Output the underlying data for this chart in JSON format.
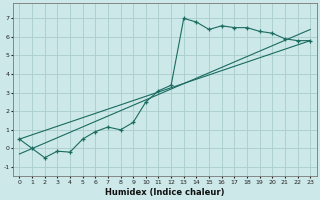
{
  "xlabel": "Humidex (Indice chaleur)",
  "background_color": "#cce8e8",
  "grid_color": "#aacccc",
  "line_color": "#1a6b60",
  "xlim": [
    -0.5,
    23.5
  ],
  "ylim": [
    -1.5,
    7.8
  ],
  "yticks": [
    -1,
    0,
    1,
    2,
    3,
    4,
    5,
    6,
    7
  ],
  "xticks": [
    0,
    1,
    2,
    3,
    4,
    5,
    6,
    7,
    8,
    9,
    10,
    11,
    12,
    13,
    14,
    15,
    16,
    17,
    18,
    19,
    20,
    21,
    22,
    23
  ],
  "series1_x": [
    0,
    1,
    2,
    3,
    4,
    5,
    6,
    7,
    8,
    9,
    10,
    11,
    12,
    13,
    14,
    15,
    16,
    17,
    18,
    19,
    20,
    21,
    22,
    23
  ],
  "series1_y": [
    0.5,
    0.0,
    -0.5,
    -0.15,
    -0.2,
    0.5,
    0.9,
    1.15,
    1.0,
    1.4,
    2.5,
    3.1,
    3.4,
    7.0,
    6.8,
    6.4,
    6.6,
    6.5,
    6.5,
    6.3,
    6.2,
    5.9,
    5.8,
    5.8
  ],
  "series2_x": [
    0,
    23
  ],
  "series2_y": [
    0.5,
    5.8
  ],
  "trend_x": [
    0,
    23
  ],
  "trend_y": [
    -0.3,
    6.4
  ]
}
